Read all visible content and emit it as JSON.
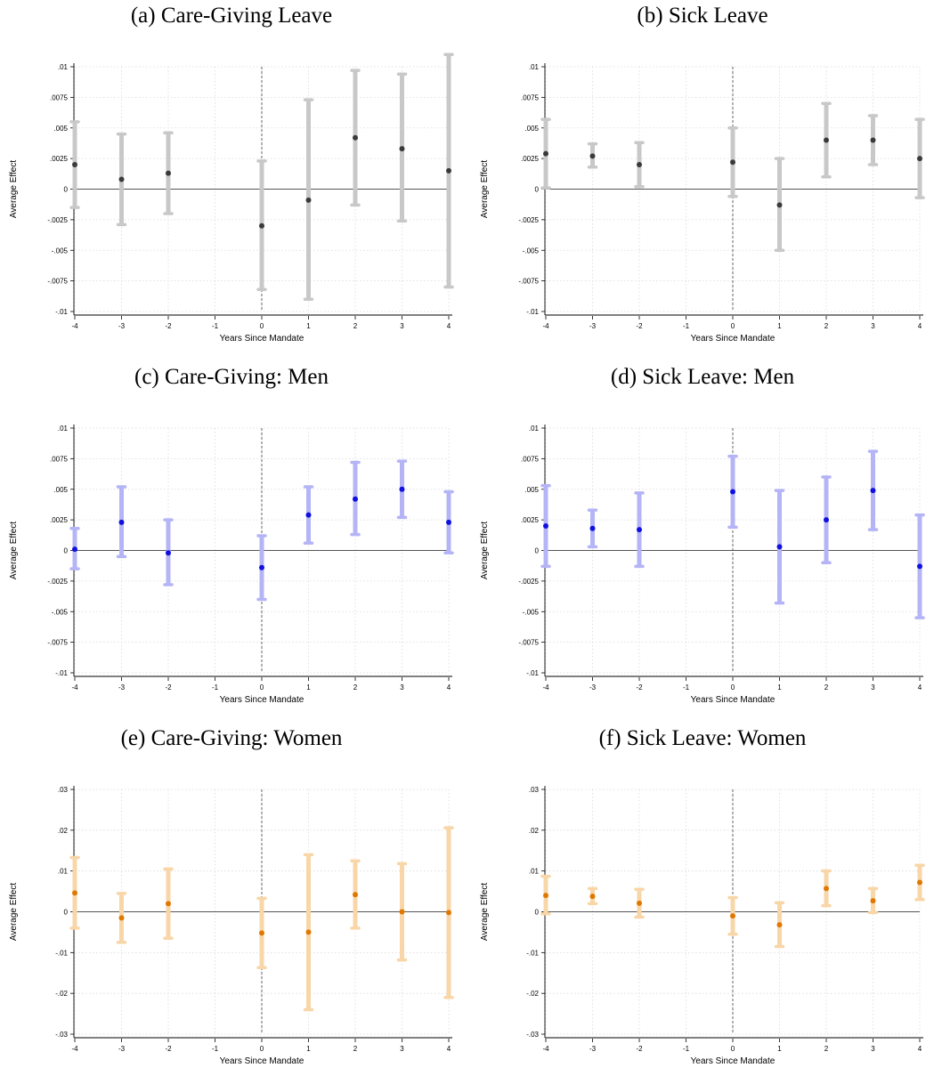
{
  "chart_data": [
    {
      "type": "scatter",
      "title": "(a) Care-Giving Leave",
      "xlabel": "Years Since Mandate",
      "ylabel": "Average Effect",
      "x": [
        -4,
        -3,
        -2,
        0,
        1,
        2,
        3,
        4
      ],
      "estimate": [
        0.002,
        0.0008,
        0.0013,
        -0.003,
        -0.0009,
        0.0042,
        0.0033,
        0.0015
      ],
      "ci_low": [
        -0.0015,
        -0.0029,
        -0.002,
        -0.0082,
        -0.009,
        -0.0013,
        -0.0026,
        -0.008
      ],
      "ci_high": [
        0.0055,
        0.0045,
        0.0046,
        0.0023,
        0.0073,
        0.0097,
        0.0094,
        0.011
      ],
      "xticks": [
        "-4",
        "-3",
        "-2",
        "-1",
        "0",
        "1",
        "2",
        "3",
        "4"
      ],
      "yticks": [
        "-.01",
        "-.0075",
        "-.005",
        "-.0025",
        "0",
        ".0025",
        ".005",
        ".0075",
        ".01"
      ],
      "ylim": [
        -0.01,
        0.01
      ],
      "xlim": [
        -4,
        4
      ],
      "marker_color": "#3a3a3a",
      "ci_color": "#c8c8c8",
      "grid": true
    },
    {
      "type": "scatter",
      "title": "(b) Sick Leave",
      "xlabel": "Years Since Mandate",
      "ylabel": "Average Effect",
      "x": [
        -4,
        -3,
        -2,
        0,
        1,
        2,
        3,
        4
      ],
      "estimate": [
        0.0029,
        0.0027,
        0.002,
        0.0022,
        -0.0013,
        0.004,
        0.004,
        0.0025
      ],
      "ci_low": [
        0.0001,
        0.0018,
        0.0002,
        -0.0006,
        -0.005,
        0.001,
        0.002,
        -0.0007
      ],
      "ci_high": [
        0.0057,
        0.0037,
        0.0038,
        0.005,
        0.0025,
        0.007,
        0.006,
        0.0057
      ],
      "xticks": [
        "-4",
        "-3",
        "-2",
        "-1",
        "0",
        "1",
        "2",
        "3",
        "4"
      ],
      "yticks": [
        "-.01",
        "-.0075",
        "-.005",
        "-.0025",
        "0",
        ".0025",
        ".005",
        ".0075",
        ".01"
      ],
      "ylim": [
        -0.01,
        0.01
      ],
      "xlim": [
        -4,
        4
      ],
      "marker_color": "#3a3a3a",
      "ci_color": "#c8c8c8",
      "grid": true
    },
    {
      "type": "scatter",
      "title": "(c) Care-Giving: Men",
      "xlabel": "Years Since Mandate",
      "ylabel": "Average Effect",
      "x": [
        -4,
        -3,
        -2,
        0,
        1,
        2,
        3,
        4
      ],
      "estimate": [
        0.0001,
        0.0023,
        -0.0002,
        -0.0014,
        0.0029,
        0.0042,
        0.005,
        0.0023
      ],
      "ci_low": [
        -0.0015,
        -0.0005,
        -0.0028,
        -0.004,
        0.0006,
        0.0013,
        0.0027,
        -0.0002
      ],
      "ci_high": [
        0.0018,
        0.0052,
        0.0025,
        0.0012,
        0.0052,
        0.0072,
        0.0073,
        0.0048
      ],
      "xticks": [
        "-4",
        "-3",
        "-2",
        "-1",
        "0",
        "1",
        "2",
        "3",
        "4"
      ],
      "yticks": [
        "-.01",
        "-.0075",
        "-.005",
        "-.0025",
        "0",
        ".0025",
        ".005",
        ".0075",
        ".01"
      ],
      "ylim": [
        -0.01,
        0.01
      ],
      "xlim": [
        -4,
        4
      ],
      "marker_color": "#1010e0",
      "ci_color": "#b4b4f6",
      "grid": true
    },
    {
      "type": "scatter",
      "title": "(d) Sick Leave: Men",
      "xlabel": "Years Since Mandate",
      "ylabel": "Average Effect",
      "x": [
        -4,
        -3,
        -2,
        0,
        1,
        2,
        3,
        4
      ],
      "estimate": [
        0.002,
        0.0018,
        0.0017,
        0.0048,
        0.0003,
        0.0025,
        0.0049,
        -0.0013
      ],
      "ci_low": [
        -0.0013,
        0.0003,
        -0.0013,
        0.0019,
        -0.0043,
        -0.001,
        0.0017,
        -0.0055
      ],
      "ci_high": [
        0.0053,
        0.0033,
        0.0047,
        0.0077,
        0.0049,
        0.006,
        0.0081,
        0.0029
      ],
      "xticks": [
        "-4",
        "-3",
        "-2",
        "-1",
        "0",
        "1",
        "2",
        "3",
        "4"
      ],
      "yticks": [
        "-.01",
        "-.0075",
        "-.005",
        "-.0025",
        "0",
        ".0025",
        ".005",
        ".0075",
        ".01"
      ],
      "ylim": [
        -0.01,
        0.01
      ],
      "xlim": [
        -4,
        4
      ],
      "marker_color": "#1010e0",
      "ci_color": "#b4b4f6",
      "grid": true
    },
    {
      "type": "scatter",
      "title": "(e) Care-Giving: Women",
      "xlabel": "Years Since Mandate",
      "ylabel": "Average Effect",
      "x": [
        -4,
        -3,
        -2,
        0,
        1,
        2,
        3,
        4
      ],
      "estimate": [
        0.0046,
        -0.0015,
        0.002,
        -0.0052,
        -0.005,
        0.0042,
        0.0,
        -0.0002
      ],
      "ci_low": [
        -0.004,
        -0.0075,
        -0.0065,
        -0.0137,
        -0.024,
        -0.004,
        -0.0118,
        -0.021
      ],
      "ci_high": [
        0.0133,
        0.0045,
        0.0105,
        0.0033,
        0.014,
        0.0125,
        0.0118,
        0.0206
      ],
      "xticks": [
        "-4",
        "-3",
        "-2",
        "-1",
        "0",
        "1",
        "2",
        "3",
        "4"
      ],
      "yticks": [
        "-.03",
        "-.02",
        "-.01",
        "0",
        ".01",
        ".02",
        ".03"
      ],
      "ylim": [
        -0.03,
        0.03
      ],
      "xlim": [
        -4,
        4
      ],
      "marker_color": "#e07800",
      "ci_color": "#f8d6a8",
      "grid": true
    },
    {
      "type": "scatter",
      "title": "(f) Sick Leave: Women",
      "xlabel": "Years Since Mandate",
      "ylabel": "Average Effect",
      "x": [
        -4,
        -3,
        -2,
        0,
        1,
        2,
        3,
        4
      ],
      "estimate": [
        0.004,
        0.0038,
        0.0021,
        -0.001,
        -0.0032,
        0.0057,
        0.0027,
        0.0072
      ],
      "ci_low": [
        -0.0005,
        0.002,
        -0.0013,
        -0.0055,
        -0.0085,
        0.0015,
        -0.0002,
        0.003
      ],
      "ci_high": [
        0.0087,
        0.0057,
        0.0055,
        0.0035,
        0.0022,
        0.01,
        0.0057,
        0.0114
      ],
      "xticks": [
        "-4",
        "-3",
        "-2",
        "-1",
        "0",
        "1",
        "2",
        "3",
        "4"
      ],
      "yticks": [
        "-.03",
        "-.02",
        "-.01",
        "0",
        ".01",
        ".02",
        ".03"
      ],
      "ylim": [
        -0.03,
        0.03
      ],
      "xlim": [
        -4,
        4
      ],
      "marker_color": "#e07800",
      "ci_color": "#f8d6a8",
      "grid": true
    }
  ]
}
